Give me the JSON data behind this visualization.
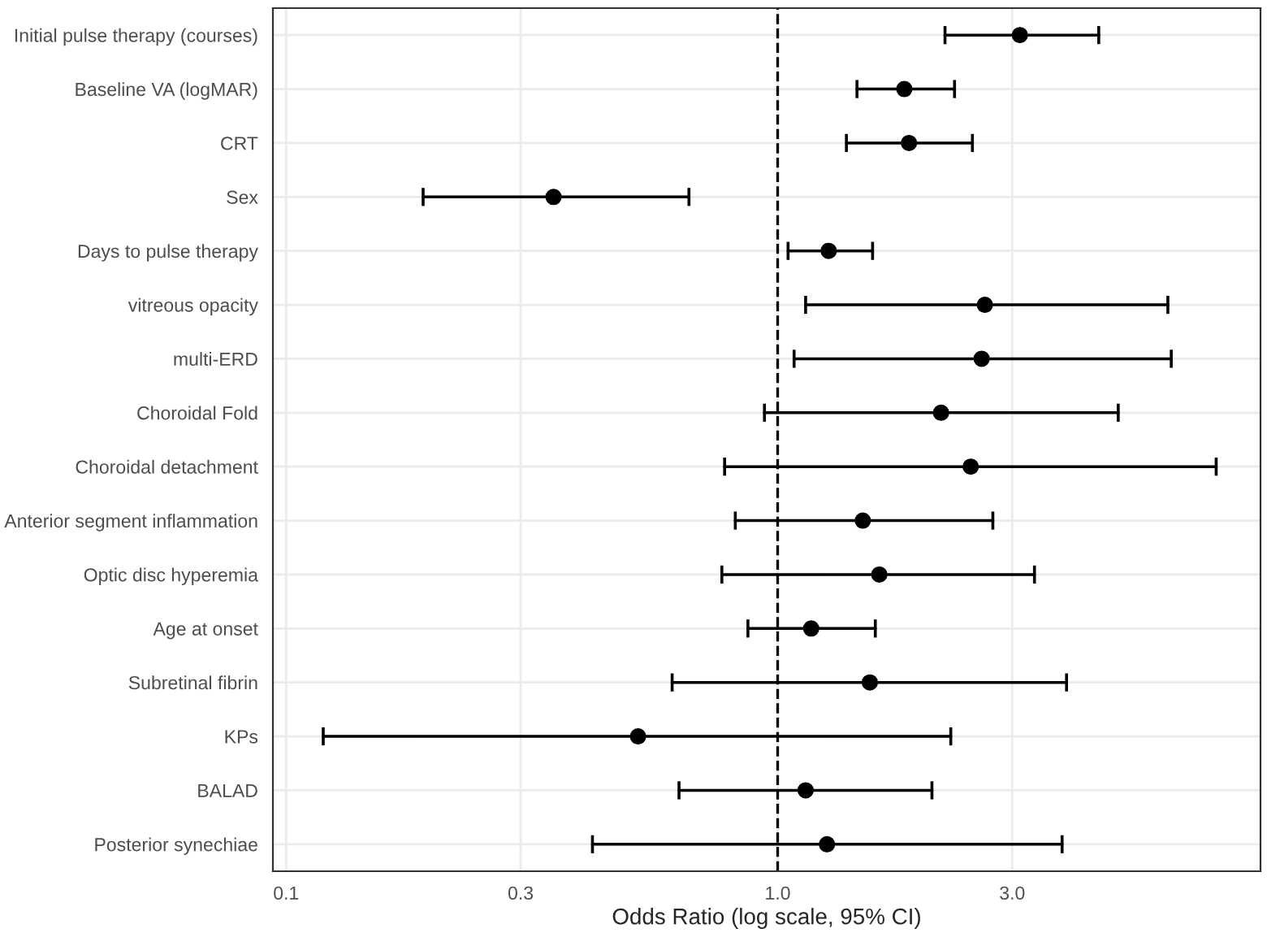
{
  "chart_data": {
    "type": "scatter",
    "orientation": "horizontal",
    "xlabel": "Odds Ratio (log scale, 95% CI)",
    "categories": [
      "Initial pulse therapy (courses)",
      "Baseline VA (logMAR)",
      "CRT",
      "Sex",
      "Days to pulse therapy",
      "vitreous opacity",
      "multi-ERD",
      "Choroidal Fold",
      "Choroidal detachment",
      "Anterior segment inflammation",
      "Optic disc hyperemia",
      "Age at onset",
      "Subretinal fibrin",
      "KPs",
      "BALAD",
      "Posterior synechiae"
    ],
    "values": [
      3.11,
      1.81,
      1.85,
      0.35,
      1.27,
      2.64,
      2.6,
      2.15,
      2.47,
      1.49,
      1.61,
      1.17,
      1.54,
      0.52,
      1.14,
      1.26
    ],
    "errors": [
      [
        2.19,
        4.5
      ],
      [
        1.45,
        2.29
      ],
      [
        1.38,
        2.49
      ],
      [
        0.19,
        0.66
      ],
      [
        1.05,
        1.56
      ],
      [
        1.14,
        6.22
      ],
      [
        1.08,
        6.32
      ],
      [
        0.94,
        4.93
      ],
      [
        0.78,
        7.8
      ],
      [
        0.82,
        2.74
      ],
      [
        0.77,
        3.33
      ],
      [
        0.87,
        1.58
      ],
      [
        0.61,
        3.87
      ],
      [
        0.119,
        2.25
      ],
      [
        0.63,
        2.06
      ],
      [
        0.42,
        3.79
      ]
    ],
    "color": "#000000",
    "marker": "circle",
    "log": "x",
    "xlim": [
      0.094,
      9.6
    ],
    "xticks": [
      0.1,
      0.3,
      {
        "value": 1,
        "label": "1.0"
      },
      {
        "value": 3,
        "label": "3.0"
      }
    ],
    "ref_lines": [
      {
        "axis": "x",
        "value": 1,
        "line_style": "dashed",
        "color": "#000000"
      }
    ],
    "grid": true
  }
}
